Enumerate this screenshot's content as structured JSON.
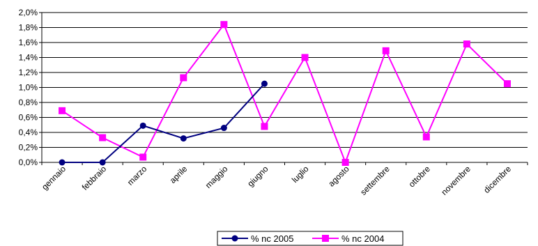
{
  "chart_data": {
    "type": "line",
    "title": "",
    "xlabel": "",
    "ylabel": "",
    "categories": [
      "gennaio",
      "febbraio",
      "marzo",
      "aprile",
      "maggio",
      "giugno",
      "luglio",
      "agosto",
      "settembre",
      "ottobre",
      "novembre",
      "dicembre"
    ],
    "y_ticks": [
      "0,0%",
      "0,2%",
      "0,4%",
      "0,6%",
      "0,8%",
      "1,0%",
      "1,2%",
      "1,4%",
      "1,6%",
      "1,8%",
      "2,0%"
    ],
    "ylim": [
      0,
      2.0
    ],
    "y_unit": "%",
    "grid": true,
    "legend_position": "bottom",
    "series": [
      {
        "name": "% nc 2005",
        "color": "#000080",
        "marker": "circle",
        "values": [
          0.0,
          0.0,
          0.49,
          0.32,
          0.46,
          1.05,
          null,
          null,
          null,
          null,
          null,
          null
        ]
      },
      {
        "name": "% nc 2004",
        "color": "#ff00ff",
        "marker": "square",
        "values": [
          0.69,
          0.33,
          0.07,
          1.13,
          1.84,
          0.48,
          1.4,
          0.0,
          1.49,
          0.34,
          1.58,
          1.05
        ]
      }
    ]
  }
}
